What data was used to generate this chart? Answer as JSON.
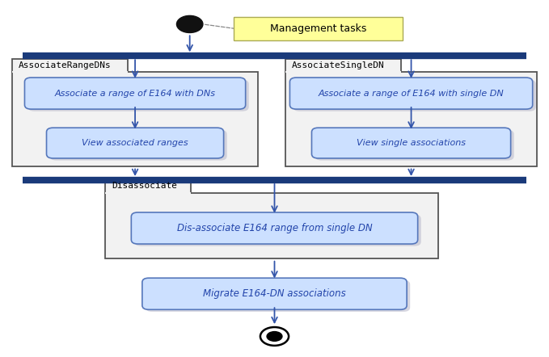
{
  "bg_color": "#ffffff",
  "box_bg": "#cce0ff",
  "box_border": "#5577bb",
  "arrow_color": "#3355aa",
  "bar_color": "#1a3a7a",
  "start_fill": "#111111",
  "note_bg": "#ffff99",
  "note_border": "#aaaa55",
  "text_color": "#2244aa",
  "label_color": "#000000",
  "title": "Management tasks",
  "left_box1_label": "Associate a range of E164 with DNs",
  "left_box2_label": "View associated ranges",
  "right_box1_label": "Associate a range of E164 with single DN",
  "right_box2_label": "View single associations",
  "left_part_label": "AssociateRangeDNs",
  "right_part_label": "AssociateSingleDN",
  "disassoc_label": "Disassociate",
  "disassoc_box_label": "Dis-associate E164 range from single DN",
  "migrate_label": "Migrate E164-DN associations"
}
